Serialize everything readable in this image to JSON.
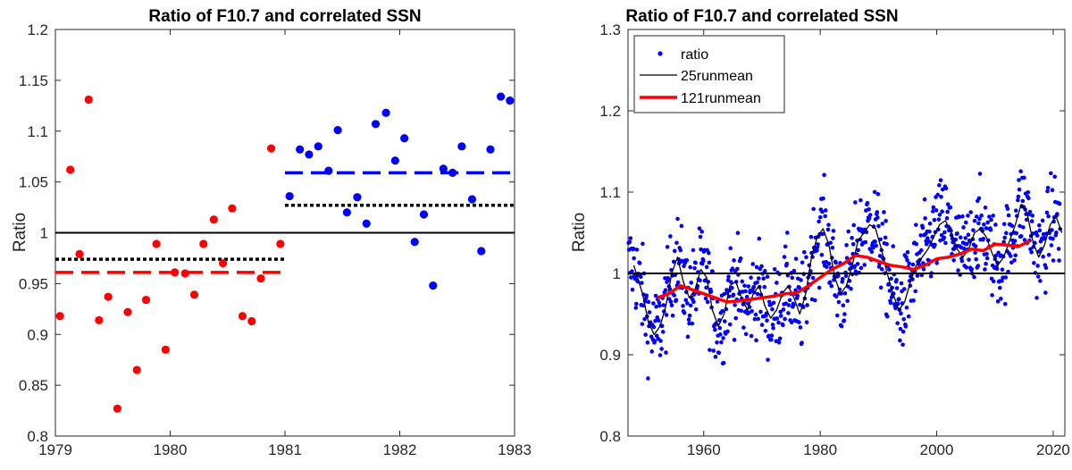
{
  "chart_data": [
    {
      "type": "scatter",
      "title": "Ratio of F10.7 and correlated SSN",
      "xlabel": "",
      "ylabel": "Ratio",
      "xlim": [
        1979,
        1983
      ],
      "ylim": [
        0.8,
        1.2
      ],
      "xticks": [
        1979,
        1980,
        1981,
        1982,
        1983
      ],
      "yticks": [
        0.8,
        0.85,
        0.9,
        0.95,
        1,
        1.05,
        1.1,
        1.15,
        1.2
      ],
      "ytick_labels": [
        "0.8",
        "0.85",
        "0.9",
        "0.95",
        "1",
        "1.05",
        "1.1",
        "1.15",
        "1.2"
      ],
      "grid": false,
      "colors": {
        "before": "#ff0000",
        "after": "#0000ff",
        "reference": "#000000"
      },
      "series": [
        {
          "color": "#ff0000",
          "points": [
            [
              1979.04,
              0.918
            ],
            [
              1979.13,
              1.062
            ],
            [
              1979.21,
              0.979
            ],
            [
              1979.29,
              1.131
            ],
            [
              1979.38,
              0.914
            ],
            [
              1979.46,
              0.937
            ],
            [
              1979.54,
              0.827
            ],
            [
              1979.63,
              0.922
            ],
            [
              1979.71,
              0.865
            ],
            [
              1979.79,
              0.934
            ],
            [
              1979.88,
              0.989
            ],
            [
              1979.96,
              0.885
            ],
            [
              1980.04,
              0.961
            ],
            [
              1980.13,
              0.96
            ],
            [
              1980.21,
              0.939
            ],
            [
              1980.29,
              0.989
            ],
            [
              1980.38,
              1.013
            ],
            [
              1980.46,
              0.97
            ],
            [
              1980.54,
              1.024
            ],
            [
              1980.63,
              0.918
            ],
            [
              1980.71,
              0.913
            ],
            [
              1980.79,
              0.955
            ],
            [
              1980.88,
              1.083
            ],
            [
              1980.96,
              0.989
            ]
          ]
        },
        {
          "color": "#0000ff",
          "points": [
            [
              1981.04,
              1.036
            ],
            [
              1981.13,
              1.082
            ],
            [
              1981.21,
              1.077
            ],
            [
              1981.29,
              1.085
            ],
            [
              1981.38,
              1.061
            ],
            [
              1981.46,
              1.101
            ],
            [
              1981.54,
              1.02
            ],
            [
              1981.63,
              1.035
            ],
            [
              1981.71,
              1.009
            ],
            [
              1981.79,
              1.107
            ],
            [
              1981.88,
              1.118
            ],
            [
              1981.96,
              1.071
            ],
            [
              1982.04,
              1.093
            ],
            [
              1982.13,
              0.991
            ],
            [
              1982.21,
              1.018
            ],
            [
              1982.29,
              0.948
            ],
            [
              1982.38,
              1.063
            ],
            [
              1982.46,
              1.059
            ],
            [
              1982.54,
              1.085
            ],
            [
              1982.63,
              1.033
            ],
            [
              1982.71,
              0.982
            ],
            [
              1982.79,
              1.082
            ],
            [
              1982.88,
              1.134
            ],
            [
              1982.96,
              1.13
            ]
          ]
        }
      ],
      "reference_lines": [
        {
          "x": [
            1979,
            1983
          ],
          "y": 1.0,
          "style": "solid",
          "color": "#000000"
        },
        {
          "x": [
            1979,
            1981
          ],
          "y": 0.961,
          "style": "dashed",
          "color": "#ff0000"
        },
        {
          "x": [
            1979,
            1981
          ],
          "y": 0.974,
          "style": "dotted",
          "color": "#000000"
        },
        {
          "x": [
            1981,
            1983
          ],
          "y": 1.059,
          "style": "dashed",
          "color": "#0000ff"
        },
        {
          "x": [
            1981,
            1983
          ],
          "y": 1.027,
          "style": "dotted",
          "color": "#000000"
        }
      ]
    },
    {
      "type": "scatter",
      "title": "Ratio of F10.7 and correlated SSN",
      "xlabel": "",
      "ylabel": "Ratio",
      "xlim": [
        1947,
        2022
      ],
      "ylim": [
        0.8,
        1.3
      ],
      "xticks": [
        1960,
        1980,
        2000,
        2020
      ],
      "yticks": [
        0.8,
        0.9,
        1,
        1.1,
        1.2,
        1.3
      ],
      "ytick_labels": [
        "0.8",
        "0.9",
        "1",
        "1.1",
        "1.2",
        "1.3"
      ],
      "grid": false,
      "legend_position": "top-left",
      "colors": {
        "ratio": "#0000ff",
        "runmean25": "#000000",
        "runmean121": "#ff0000",
        "reference": "#000000"
      },
      "series": [
        {
          "name": "ratio",
          "kind": "dots",
          "color": "#0000ff"
        },
        {
          "name": "25runmean",
          "kind": "line",
          "color": "#000000",
          "x": [
            1948,
            1949.5,
            1950.5,
            1951.5,
            1952.5,
            1953.5,
            1954.5,
            1955.5,
            1956.5,
            1957.5,
            1958.5,
            1959.5,
            1960.5,
            1961.5,
            1962.5,
            1963.5,
            1964.5,
            1965.5,
            1966.5,
            1967.5,
            1968.5,
            1969.5,
            1970.5,
            1971.5,
            1972.5,
            1973.5,
            1974.5,
            1975.5,
            1976.5,
            1977.5,
            1978.5,
            1979.5,
            1980.5,
            1981.5,
            1982.5,
            1983.5,
            1984.5,
            1985.5,
            1986.5,
            1987.5,
            1988.5,
            1989.5,
            1990.5,
            1991.5,
            1992.5,
            1993.5,
            1994.5,
            1995.5,
            1996.5,
            1997.5,
            1998.5,
            1999.5,
            2000.5,
            2001.5,
            2002.5,
            2003.5,
            2004.5,
            2005.5,
            2006.5,
            2007.5,
            2008.5,
            2009.5,
            2010.5,
            2011.5,
            2012.5,
            2013.5,
            2014.5,
            2015.5,
            2016.5,
            2017.5,
            2018.5,
            2019.5,
            2020.5,
            2021.5
          ],
          "y": [
            1.01,
            0.975,
            0.94,
            0.925,
            0.935,
            0.96,
            1.0,
            1.02,
            0.99,
            0.97,
            0.98,
            1.005,
            0.995,
            0.955,
            0.935,
            0.95,
            0.985,
            0.99,
            0.97,
            0.955,
            0.975,
            0.985,
            0.96,
            0.945,
            0.955,
            0.975,
            0.985,
            0.97,
            0.95,
            0.975,
            1.02,
            1.045,
            1.055,
            1.035,
            0.995,
            0.975,
            0.985,
            1.01,
            1.04,
            1.05,
            1.06,
            1.055,
            1.03,
            1.0,
            0.975,
            0.955,
            0.965,
            0.99,
            1.01,
            1.02,
            1.03,
            1.045,
            1.06,
            1.065,
            1.05,
            1.03,
            1.02,
            1.03,
            1.05,
            1.055,
            1.045,
            1.025,
            1.01,
            1.02,
            1.04,
            1.06,
            1.085,
            1.075,
            1.04,
            1.02,
            1.035,
            1.06,
            1.07,
            1.05
          ]
        },
        {
          "name": "121runmean",
          "kind": "line",
          "color": "#ff0000",
          "x": [
            1952,
            1954,
            1956,
            1958,
            1960,
            1962,
            1964,
            1966,
            1968,
            1970,
            1972,
            1974,
            1976,
            1978,
            1980,
            1982,
            1984,
            1986,
            1988,
            1990,
            1992,
            1994,
            1996,
            1998,
            2000,
            2002,
            2004,
            2006,
            2008,
            2010,
            2012,
            2014,
            2016
          ],
          "y": [
            0.97,
            0.975,
            0.985,
            0.98,
            0.975,
            0.97,
            0.965,
            0.966,
            0.968,
            0.97,
            0.972,
            0.975,
            0.976,
            0.985,
            0.995,
            1.005,
            1.012,
            1.022,
            1.02,
            1.015,
            1.01,
            1.008,
            1.005,
            1.01,
            1.018,
            1.02,
            1.024,
            1.03,
            1.028,
            1.036,
            1.035,
            1.033,
            1.04
          ]
        }
      ],
      "reference_lines": [
        {
          "x": [
            1947,
            2022
          ],
          "y": 1.0,
          "style": "solid",
          "color": "#000000"
        }
      ]
    }
  ]
}
